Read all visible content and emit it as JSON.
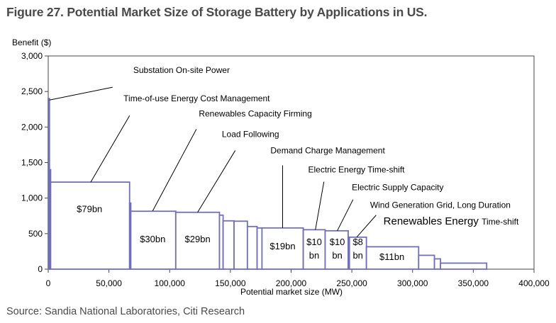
{
  "title": "Figure 27. Potential Market Size of Storage Battery by Applications in US.",
  "source": "Source: Sandia National Laboratories, Citi Research",
  "chart_data": {
    "type": "bar",
    "subtype": "variable-width step bars",
    "ylabel": "Benefit ($)",
    "xlabel": "Potential market size (MW)",
    "xlim": [
      0,
      400000
    ],
    "ylim": [
      0,
      3000
    ],
    "xticks": [
      0,
      50000,
      100000,
      150000,
      200000,
      250000,
      300000,
      350000,
      400000
    ],
    "xtick_labels": [
      "0",
      "50,000",
      "100,000",
      "150,000",
      "200,000",
      "250,000",
      "300,000",
      "350,000",
      "400,000"
    ],
    "yticks": [
      0,
      500,
      1000,
      1500,
      2000,
      2500,
      3000
    ],
    "ytick_labels": [
      "0",
      "500",
      "1,000",
      "1,500",
      "2,000",
      "2,500",
      "3,000"
    ],
    "grid": false,
    "bar_color": "#7070b8",
    "bars": [
      {
        "x0": 0,
        "x1": 1000,
        "value": 2400
      },
      {
        "x0": 1000,
        "x1": 2000,
        "value": 1400
      },
      {
        "x0": 2000,
        "x1": 67000,
        "value": 1225
      },
      {
        "x0": 67000,
        "x1": 68000,
        "value": 930
      },
      {
        "x0": 68000,
        "x1": 105000,
        "value": 815
      },
      {
        "x0": 105000,
        "x1": 141000,
        "value": 800
      },
      {
        "x0": 141000,
        "x1": 144000,
        "value": 760
      },
      {
        "x0": 144000,
        "x1": 153000,
        "value": 680
      },
      {
        "x0": 153000,
        "x1": 164000,
        "value": 675
      },
      {
        "x0": 164000,
        "x1": 172000,
        "value": 600
      },
      {
        "x0": 172000,
        "x1": 176000,
        "value": 580
      },
      {
        "x0": 176000,
        "x1": 210000,
        "value": 580
      },
      {
        "x0": 210000,
        "x1": 228000,
        "value": 555
      },
      {
        "x0": 228000,
        "x1": 247000,
        "value": 540
      },
      {
        "x0": 247000,
        "x1": 248000,
        "value": 450
      },
      {
        "x0": 248000,
        "x1": 262000,
        "value": 450
      },
      {
        "x0": 262000,
        "x1": 305000,
        "value": 315
      },
      {
        "x0": 305000,
        "x1": 318000,
        "value": 195
      },
      {
        "x0": 318000,
        "x1": 323000,
        "value": 145
      },
      {
        "x0": 323000,
        "x1": 361000,
        "value": 85
      }
    ],
    "bar_labels": [
      {
        "lines": [
          "$79bn"
        ],
        "x": 34000,
        "y": 800
      },
      {
        "lines": [
          "$30bn"
        ],
        "x": 86000,
        "y": 380
      },
      {
        "lines": [
          "$29bn"
        ],
        "x": 123000,
        "y": 380
      },
      {
        "lines": [
          "$19bn"
        ],
        "x": 193000,
        "y": 280
      },
      {
        "lines": [
          "$10",
          "bn"
        ],
        "x": 219000,
        "y": 340
      },
      {
        "lines": [
          "$10",
          "bn"
        ],
        "x": 238000,
        "y": 340
      },
      {
        "lines": [
          "$8",
          "bn"
        ],
        "x": 255000,
        "y": 340
      },
      {
        "lines": [
          "$11bn"
        ],
        "x": 283000,
        "y": 130
      }
    ],
    "annotations": [
      {
        "text": "Substation On-site Power",
        "x": 70000,
        "y": 2760,
        "arrow_from": [
          53000,
          2560
        ],
        "arrow_to": [
          1000,
          2380
        ]
      },
      {
        "text": "Time-of-use Energy Cost Management",
        "x": 62000,
        "y": 2360,
        "arrow_from": [
          67000,
          2160
        ],
        "arrow_to": [
          35000,
          1225
        ]
      },
      {
        "text": "Renewables Capacity Firming",
        "x": 124000,
        "y": 2150,
        "arrow_from": [
          122000,
          1970
        ],
        "arrow_to": [
          86000,
          820
        ]
      },
      {
        "text": "Load Following",
        "x": 143000,
        "y": 1860,
        "arrow_from": [
          154000,
          1670
        ],
        "arrow_to": [
          123000,
          800
        ]
      },
      {
        "text": "Demand Charge Management",
        "x": 183000,
        "y": 1630,
        "arrow_from": [
          193000,
          1460
        ],
        "arrow_to": [
          193000,
          580
        ]
      },
      {
        "text": "Electric Energy Time-shift",
        "x": 214000,
        "y": 1360,
        "arrow_from": [
          227000,
          1230
        ],
        "arrow_to": [
          220000,
          555
        ]
      },
      {
        "text": "Electric Supply Capacity",
        "x": 250000,
        "y": 1110,
        "arrow_from": [
          251000,
          980
        ],
        "arrow_to": [
          238000,
          540
        ]
      },
      {
        "text": "Wind Generation Grid, Long Duration",
        "x": 265000,
        "y": 860,
        "arrow_from": [
          270000,
          760
        ],
        "arrow_to": [
          254000,
          450
        ]
      },
      {
        "text": "Renewables Energy",
        "text2": "Time-shift",
        "x": 276000,
        "y": 630
      }
    ]
  }
}
